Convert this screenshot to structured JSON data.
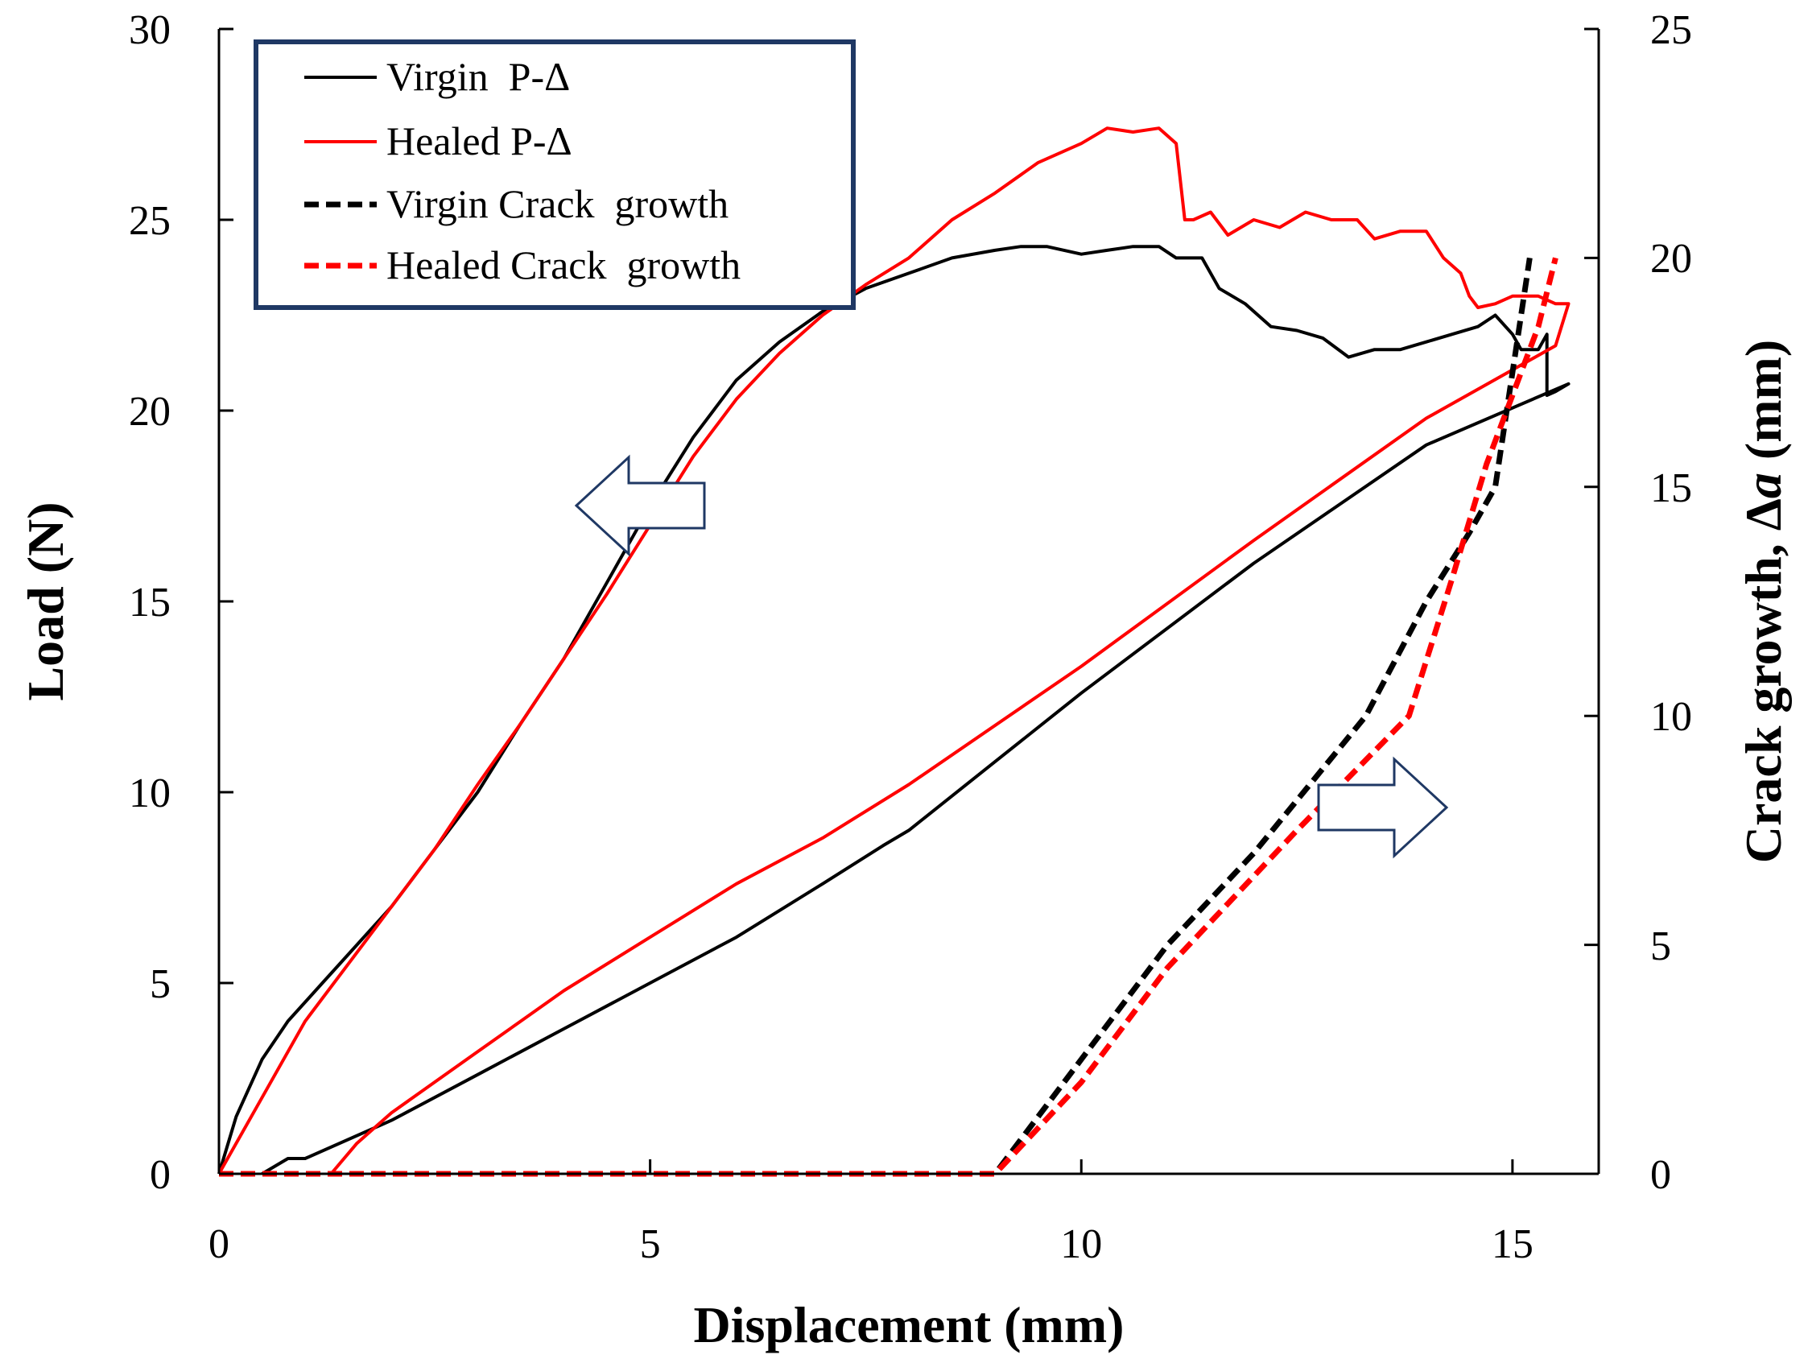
{
  "chart_data": {
    "type": "line",
    "xlabel": "Displacement (mm)",
    "ylabel_left": "Load (N)",
    "ylabel_right_prefix": "Crack growth, Δ",
    "ylabel_right_var": "a",
    "ylabel_right_suffix": " (mm)",
    "xlim": [
      0,
      16
    ],
    "ylim_left": [
      0,
      30
    ],
    "ylim_right": [
      0,
      25
    ],
    "x_ticks": [
      "0",
      "5",
      "10",
      "15"
    ],
    "y_left_ticks": [
      "0",
      "5",
      "10",
      "15",
      "20",
      "25",
      "30"
    ],
    "y_right_ticks": [
      "0",
      "5",
      "10",
      "15",
      "20",
      "25"
    ],
    "grid": false,
    "legend_position": "top-left",
    "series": [
      {
        "name": "Virgin  P-Δ",
        "axis": "left",
        "style": "solid",
        "color": "#000000",
        "x": [
          0,
          0.2,
          0.5,
          0.8,
          1.2,
          1.6,
          2.0,
          2.5,
          3.0,
          3.5,
          4.0,
          4.5,
          5.0,
          5.5,
          6.0,
          6.5,
          7.0,
          7.5,
          8.0,
          8.5,
          9.0,
          9.3,
          9.6,
          10.0,
          10.3,
          10.6,
          10.9,
          11.1,
          11.4,
          11.6,
          11.9,
          12.2,
          12.5,
          12.8,
          13.1,
          13.4,
          13.7,
          14.0,
          14.3,
          14.6,
          14.8,
          15.0,
          15.1,
          15.3,
          15.4,
          15.4,
          15.5,
          15.65,
          14.0,
          12.0,
          10.0,
          9.0,
          8.0,
          7.7,
          7.0,
          6.0,
          5.0,
          4.0,
          3.0,
          2.0,
          1.0,
          0.8,
          0.5
        ],
        "y": [
          0,
          1.5,
          3.0,
          4.0,
          5.0,
          6.0,
          7.0,
          8.5,
          10.0,
          11.8,
          13.5,
          15.5,
          17.5,
          19.3,
          20.8,
          21.8,
          22.6,
          23.2,
          23.6,
          24.0,
          24.2,
          24.3,
          24.3,
          24.1,
          24.2,
          24.3,
          24.3,
          24.0,
          24.0,
          23.2,
          22.8,
          22.2,
          22.1,
          21.9,
          21.4,
          21.6,
          21.6,
          21.8,
          22.0,
          22.2,
          22.5,
          22.0,
          21.6,
          21.6,
          22.0,
          20.4,
          20.5,
          20.7,
          19.1,
          16.0,
          12.6,
          10.8,
          9.0,
          8.6,
          7.6,
          6.2,
          5.0,
          3.8,
          2.6,
          1.4,
          0.4,
          0.4,
          0
        ]
      },
      {
        "name": "Healed P-Δ",
        "axis": "left",
        "style": "solid",
        "color": "#ff0000",
        "x": [
          0,
          0.5,
          1.0,
          1.5,
          2.0,
          2.5,
          3.0,
          3.5,
          4.0,
          4.5,
          5.0,
          5.5,
          6.0,
          6.5,
          7.0,
          7.5,
          8.0,
          8.5,
          9.0,
          9.5,
          10.0,
          10.3,
          10.6,
          10.9,
          11.1,
          11.2,
          11.3,
          11.5,
          11.7,
          12.0,
          12.3,
          12.6,
          12.9,
          13.2,
          13.4,
          13.7,
          14.0,
          14.2,
          14.4,
          14.5,
          14.6,
          14.8,
          15.0,
          15.3,
          15.5,
          15.65,
          15.5,
          14.0,
          12.0,
          10.0,
          8.0,
          7.0,
          6.0,
          5.0,
          4.0,
          3.0,
          2.0,
          1.6,
          1.3
        ],
        "y": [
          0,
          2.0,
          4.0,
          5.5,
          7.0,
          8.5,
          10.2,
          11.8,
          13.5,
          15.2,
          17.0,
          18.8,
          20.3,
          21.5,
          22.5,
          23.3,
          24.0,
          25.0,
          25.7,
          26.5,
          27.0,
          27.4,
          27.3,
          27.4,
          27.0,
          25.0,
          25.0,
          25.2,
          24.6,
          25.0,
          24.8,
          25.2,
          25.0,
          25.0,
          24.5,
          24.7,
          24.7,
          24.0,
          23.6,
          23.0,
          22.7,
          22.8,
          23.0,
          23.0,
          22.8,
          22.8,
          21.7,
          19.8,
          16.6,
          13.3,
          10.2,
          8.8,
          7.6,
          6.2,
          4.8,
          3.2,
          1.6,
          0.8,
          0
        ]
      },
      {
        "name": "Virgin Crack  growth",
        "axis": "right",
        "style": "dashed",
        "color": "#000000",
        "x": [
          0,
          9.0,
          10.0,
          11.0,
          12.0,
          13.3,
          14.0,
          14.5,
          14.8,
          15.0,
          15.2
        ],
        "y": [
          0,
          0,
          2.5,
          5.0,
          7.0,
          10.0,
          12.5,
          14.0,
          15.0,
          17.5,
          20.0
        ]
      },
      {
        "name": "Healed Crack  growth",
        "axis": "right",
        "style": "dashed",
        "color": "#ff0000",
        "x": [
          0,
          9.0,
          10.0,
          11.0,
          12.5,
          13.8,
          14.3,
          14.7,
          15.0,
          15.3,
          15.5
        ],
        "y": [
          0,
          0,
          2.0,
          4.5,
          7.5,
          10.0,
          13.0,
          15.5,
          17.0,
          18.5,
          20.0
        ]
      }
    ]
  },
  "arrow_colors": {
    "stroke": "#1f3864",
    "fill": "#ffffff"
  },
  "legend_border_color": "#1f3864"
}
